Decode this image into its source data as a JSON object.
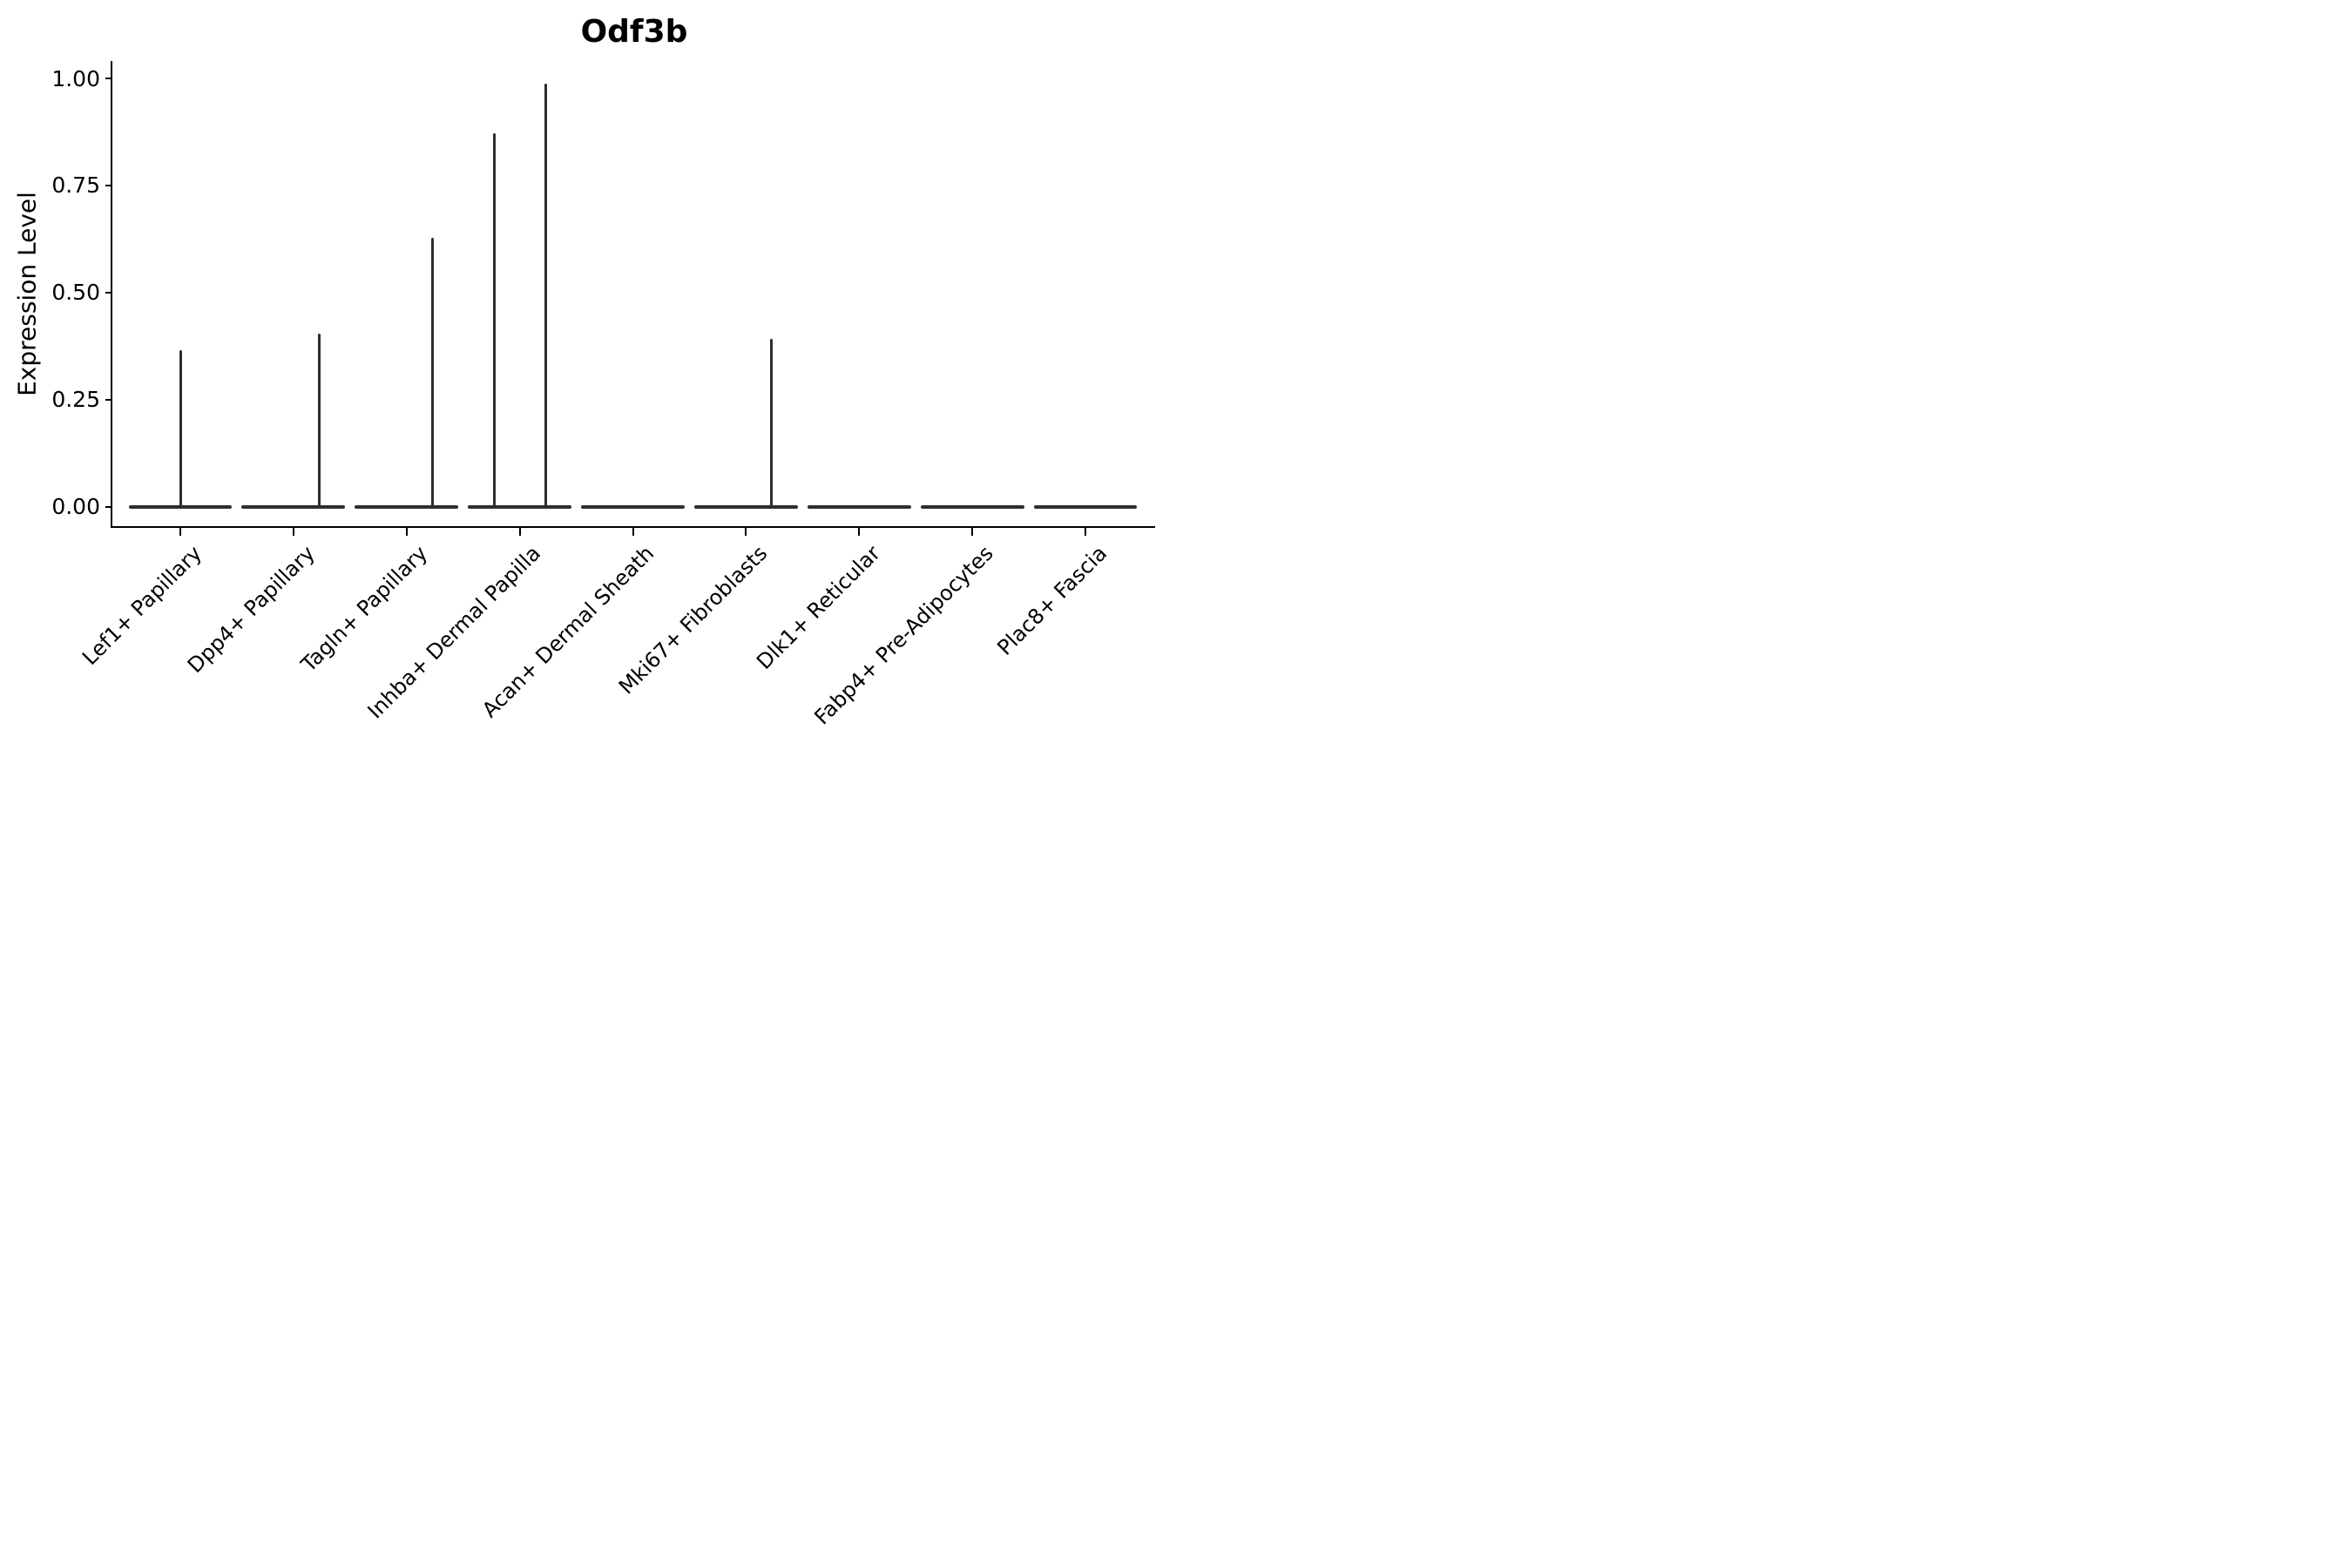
{
  "title": "Odf3b",
  "y_axis": {
    "label": "Expression Level",
    "tick_labels": [
      "0.00",
      "0.25",
      "0.50",
      "0.75",
      "1.00"
    ],
    "tick_values": [
      0.0,
      0.25,
      0.5,
      0.75,
      1.0
    ]
  },
  "x_axis": {
    "categories": [
      "Lef1+ Papillary",
      "Dpp4+ Papillary",
      "Tagln+ Papillary",
      "Inhba+ Dermal Papilla",
      "Acan+ Dermal Sheath",
      "Mki67+ Fibroblasts",
      "Dlk1+ Reticular",
      "Fabp4+ Pre-Adipocytes",
      "Plac8+ Fascia"
    ]
  },
  "chart_data": {
    "type": "violin",
    "title": "Odf3b",
    "xlabel": "",
    "ylabel": "Expression Level",
    "ylim": [
      0,
      1.05
    ],
    "yticks": [
      0.0,
      0.25,
      0.5,
      0.75,
      1.0
    ],
    "ytick_labels": [
      "0.00",
      "0.25",
      "0.50",
      "0.75",
      "1.00"
    ],
    "grid": false,
    "legend": "none",
    "categories": [
      "Lef1+ Papillary",
      "Dpp4+ Papillary",
      "Tagln+ Papillary",
      "Inhba+ Dermal Papilla",
      "Acan+ Dermal Sheath",
      "Mki67+ Fibroblasts",
      "Dlk1+ Reticular",
      "Fabp4+ Pre-Adipocytes",
      "Plac8+ Fascia"
    ],
    "violins": [
      {
        "category": "Lef1+ Papillary",
        "base_value": 0.0,
        "spikes": [
          {
            "dx": 0.0,
            "top": 0.366
          }
        ]
      },
      {
        "category": "Dpp4+ Papillary",
        "base_value": 0.0,
        "spikes": [
          {
            "dx": 0.227,
            "top": 0.403
          }
        ]
      },
      {
        "category": "Tagln+ Papillary",
        "base_value": 0.0,
        "spikes": [
          {
            "dx": 0.227,
            "top": 0.627
          }
        ]
      },
      {
        "category": "Inhba+ Dermal Papilla",
        "base_value": 0.0,
        "spikes": [
          {
            "dx": -0.221,
            "top": 0.872
          },
          {
            "dx": 0.231,
            "top": 0.988
          }
        ]
      },
      {
        "category": "Acan+ Dermal Sheath",
        "base_value": 0.0,
        "spikes": []
      },
      {
        "category": "Mki67+ Fibroblasts",
        "base_value": 0.0,
        "spikes": [
          {
            "dx": 0.227,
            "top": 0.391
          }
        ]
      },
      {
        "category": "Dlk1+ Reticular",
        "base_value": 0.0,
        "spikes": []
      },
      {
        "category": "Fabp4+ Pre-Adipocytes",
        "base_value": 0.0,
        "spikes": []
      },
      {
        "category": "Plac8+ Fascia",
        "base_value": 0.0,
        "spikes": []
      }
    ],
    "violin_halfwidth_frac": 0.458,
    "colors": {
      "violin": "#2e2e2e",
      "axis": "#000000",
      "text": "#000000",
      "background": "#ffffff"
    }
  }
}
